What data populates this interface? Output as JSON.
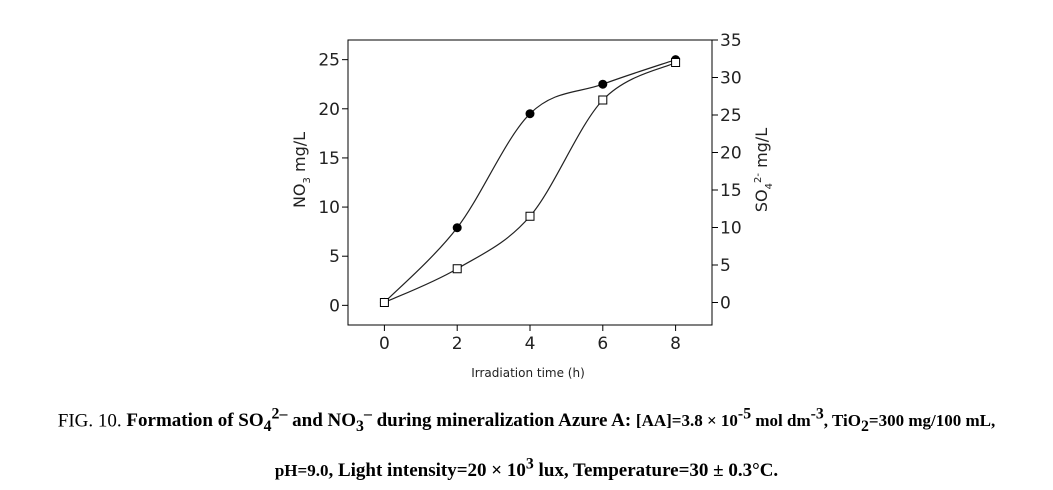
{
  "chart_data": {
    "type": "line",
    "xlabel": "Irradiation time (h)",
    "ylabel_left": "NO3 mg/L",
    "ylabel_right": "SO4 2- mg/L",
    "xlim": [
      -1,
      9
    ],
    "ylim_left": [
      -2,
      27
    ],
    "ylim_right": [
      -3,
      35
    ],
    "xticks": [
      0,
      2,
      4,
      6,
      8
    ],
    "yticks_left": [
      0,
      5,
      10,
      15,
      20,
      25
    ],
    "yticks_right": [
      0,
      5,
      10,
      15,
      20,
      25,
      30,
      35
    ],
    "grid": false,
    "series": [
      {
        "axis": "left",
        "marker": "filled-circle",
        "x": [
          0,
          2,
          4,
          6,
          8
        ],
        "y": [
          0.3,
          7.9,
          19.5,
          22.5,
          25.0
        ]
      },
      {
        "axis": "right",
        "marker": "open-square",
        "x": [
          0,
          2,
          4,
          6,
          8
        ],
        "y": [
          0,
          4.5,
          11.5,
          27,
          32
        ]
      }
    ]
  },
  "caption": {
    "fig": "FIG. 10.",
    "bold1": "Formation of SO",
    "bold1_sub": "4",
    "bold1_sup": "2–",
    "bold2": " and NO",
    "bold2_sub": "3",
    "bold2_sup": "–",
    "bold3": " during mineralization Azure A: ",
    "aa": "[AA]=3.8 × 10",
    "aa_sup": "-5",
    "aa_unit": " mol dm",
    "aa_unit_sup": "-3",
    "tio2": ", TiO",
    "tio2_sub": "2",
    "tio2_val": "=300 mg/100 mL,",
    "ph": "pH=9.0",
    "line2a": ", Light intensity=20 × 10",
    "line2a_sup": "3",
    "line2b": " lux, Temperature=30 ± 0.3°C."
  }
}
